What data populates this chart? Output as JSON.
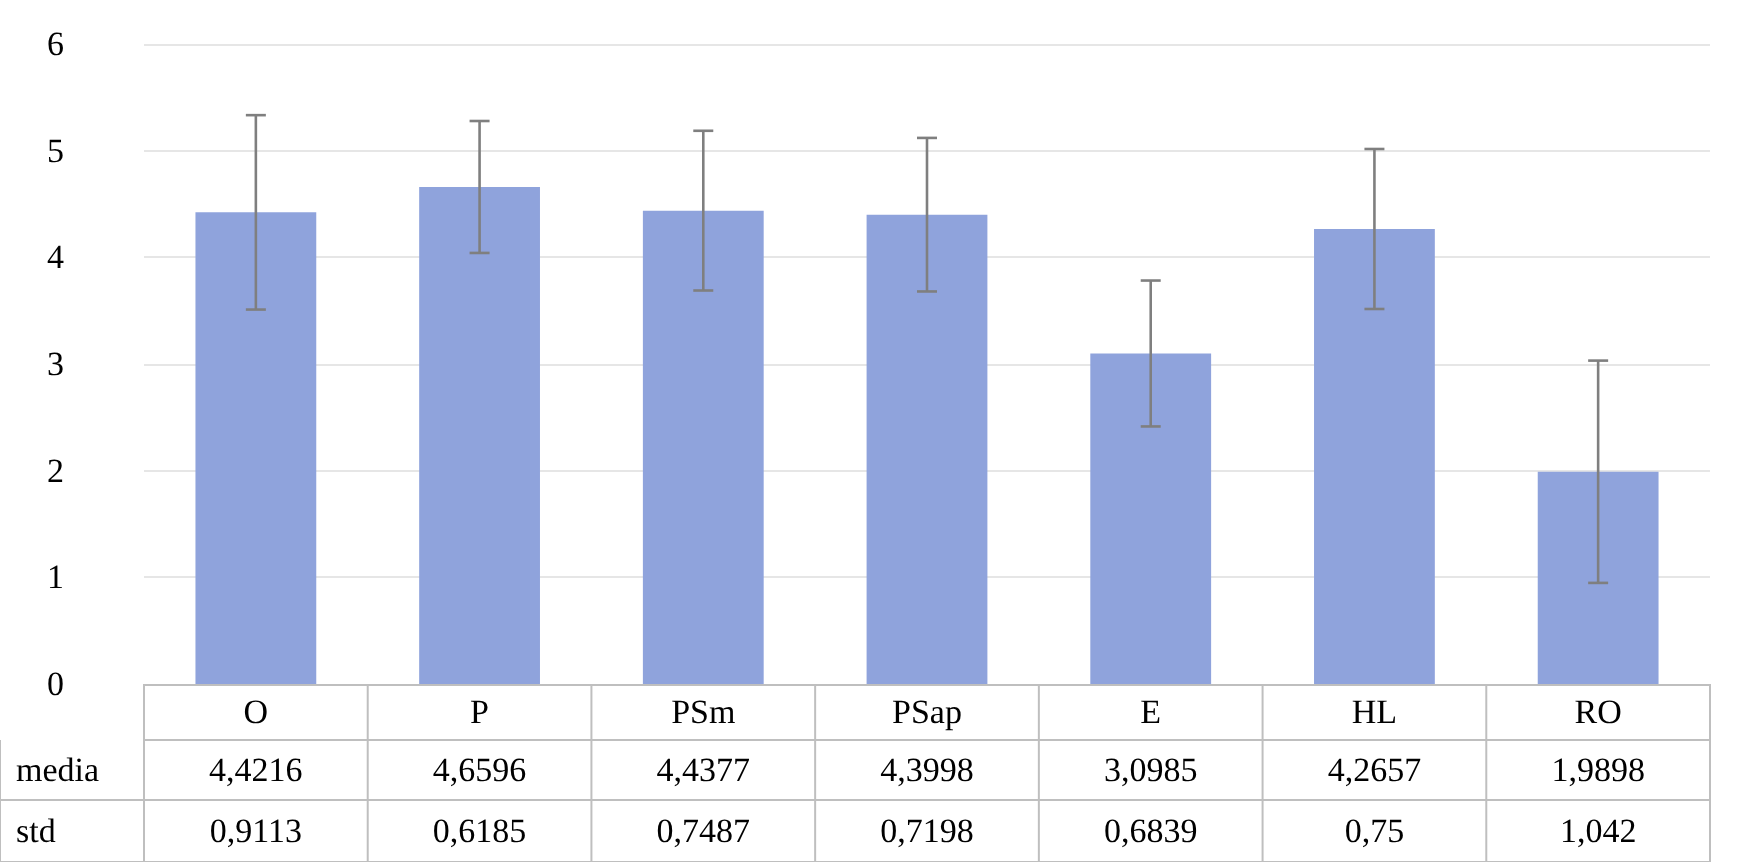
{
  "chart_data": {
    "type": "bar",
    "categories": [
      "O",
      "P",
      "PSm",
      "PSap",
      "E",
      "HL",
      "RO"
    ],
    "series": [
      {
        "name": "media",
        "color": "#8fa3dc",
        "values": [
          4.4216,
          4.6596,
          4.4377,
          4.3998,
          3.0985,
          4.2657,
          1.9898
        ],
        "value_labels": [
          "4,4216",
          "4,6596",
          "4,4377",
          "4,3998",
          "3,0985",
          "4,2657",
          "1,9898"
        ],
        "errors": [
          0.9113,
          0.6185,
          0.7487,
          0.7198,
          0.6839,
          0.75,
          1.042
        ]
      }
    ],
    "annotations": [
      "std",
      "0,9113",
      "0,6185",
      "0,7487",
      "0,7198",
      "0,6839",
      "0,75",
      "1,042"
    ],
    "ylim": [
      0,
      6
    ],
    "yticks": [
      0,
      1,
      2,
      3,
      4,
      5,
      6
    ],
    "grid": "y",
    "legend": false
  }
}
